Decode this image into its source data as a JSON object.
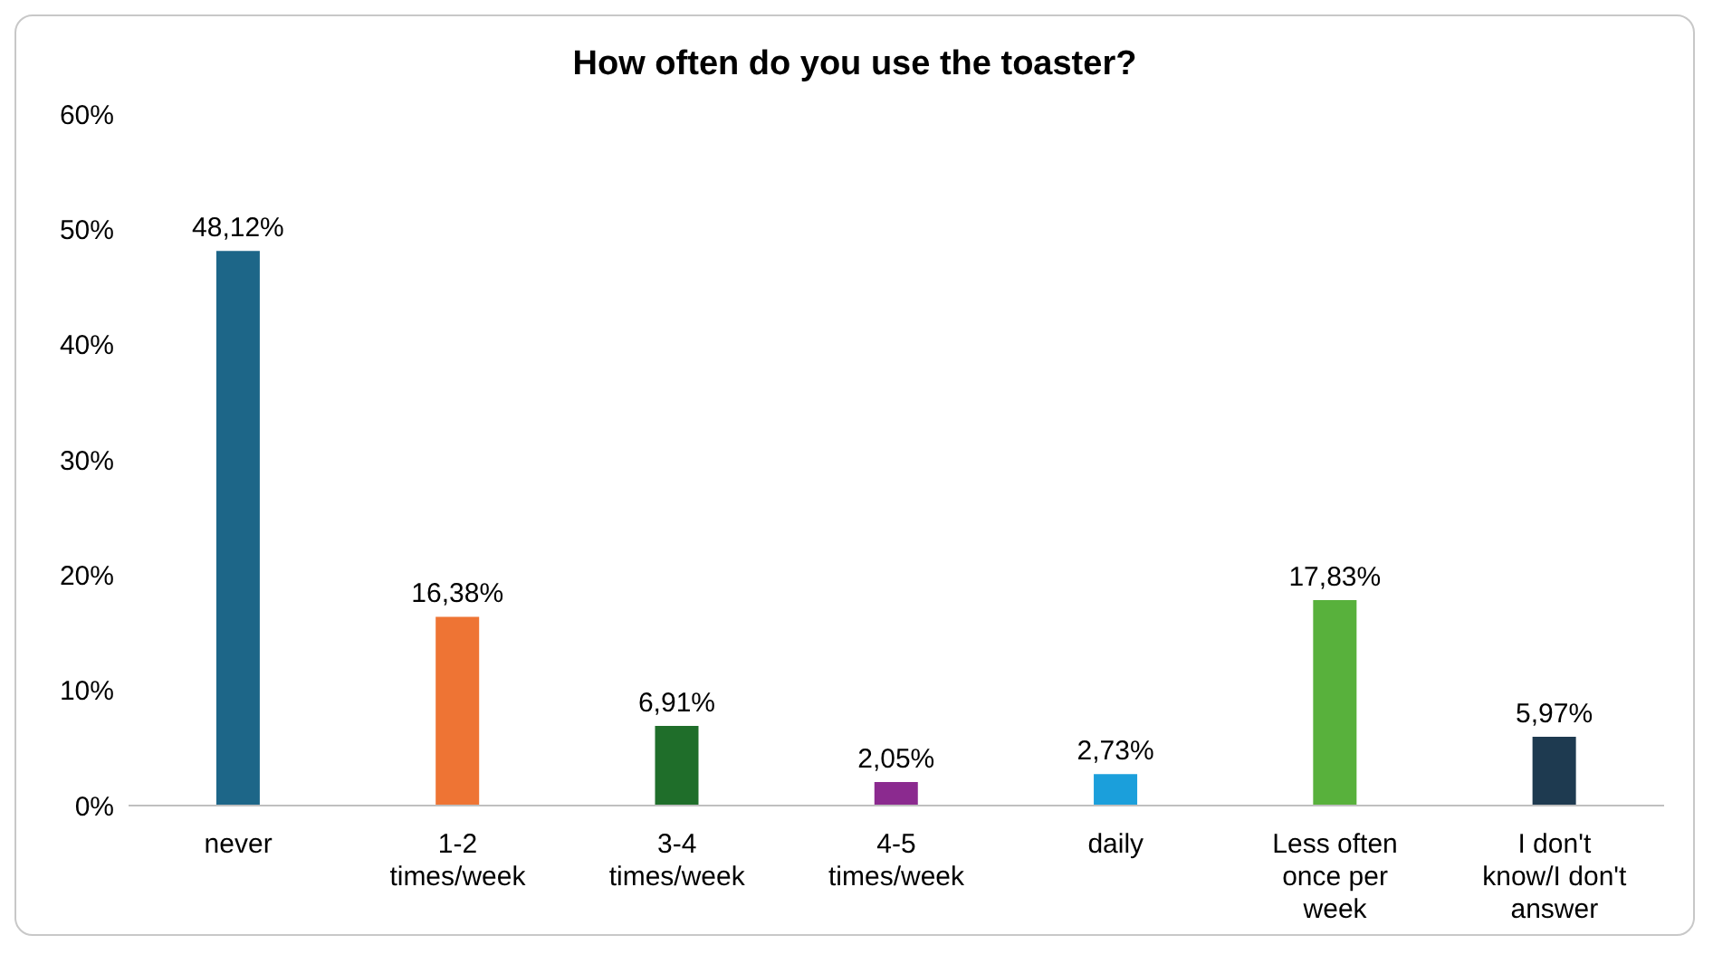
{
  "chart_data": {
    "type": "bar",
    "title": "How often do you use the toaster?",
    "categories": [
      "never",
      "1-2 times/week",
      "3-4 times/week",
      "4-5 times/week",
      "daily",
      "Less often once per week",
      "I don't know/I don't answer"
    ],
    "values": [
      48.12,
      16.38,
      6.91,
      2.05,
      2.73,
      17.83,
      5.97
    ],
    "colors": [
      "#1d6688",
      "#ee7434",
      "#1f6e2a",
      "#8b2a8f",
      "#1b9fdb",
      "#58b13c",
      "#1e3a50"
    ],
    "value_labels": [
      "48,12%",
      "16,38%",
      "6,91%",
      "2,05%",
      "2,73%",
      "17,83%",
      "5,97%"
    ],
    "ylim": [
      0,
      60
    ],
    "yticks": [
      {
        "value": 0,
        "label": "0%"
      },
      {
        "value": 10,
        "label": "10%"
      },
      {
        "value": 20,
        "label": "20%"
      },
      {
        "value": 30,
        "label": "30%"
      },
      {
        "value": 40,
        "label": "40%"
      },
      {
        "value": 50,
        "label": "50%"
      },
      {
        "value": 60,
        "label": "60%"
      }
    ],
    "grid": false,
    "legend": false
  }
}
